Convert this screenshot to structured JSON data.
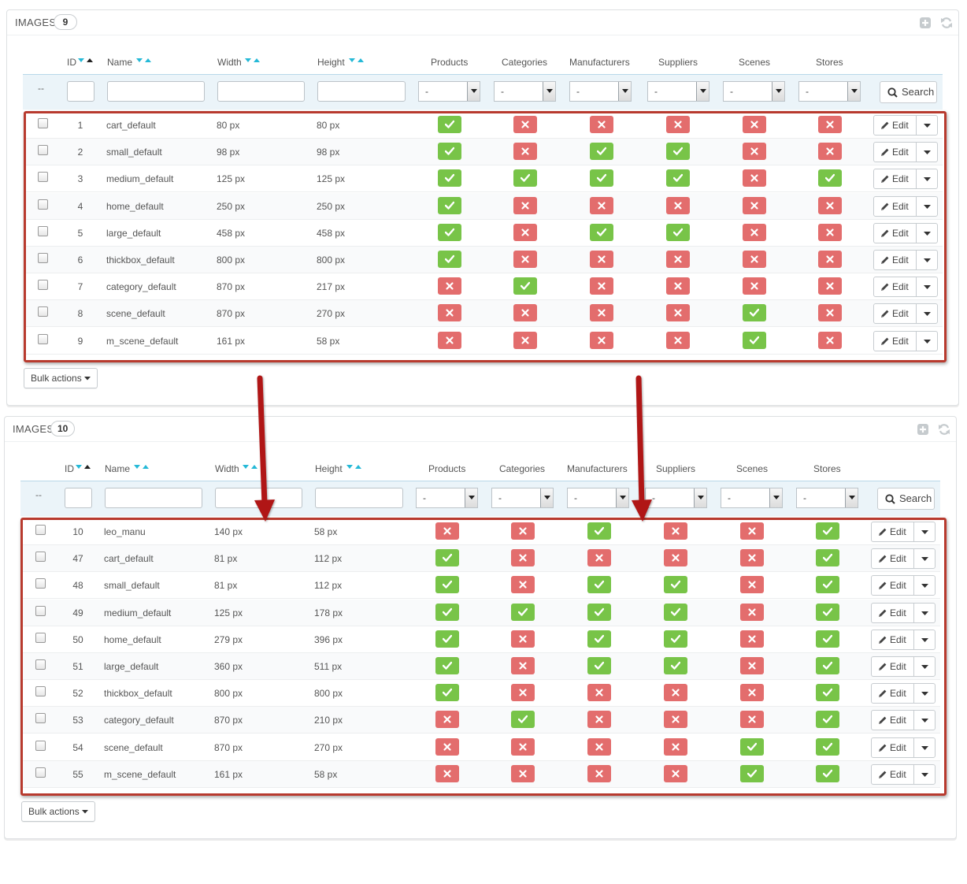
{
  "panels": [
    {
      "title": "IMAGES",
      "count": "9",
      "headers": {
        "id": "ID",
        "name": "Name",
        "width": "Width",
        "height": "Height",
        "products": "Products",
        "categories": "Categories",
        "manufacturers": "Manufacturers",
        "suppliers": "Suppliers",
        "scenes": "Scenes",
        "stores": "Stores"
      },
      "filter": {
        "dash": "--",
        "select_value": "-",
        "search_label": "Search"
      },
      "rows": [
        {
          "id": "1",
          "name": "cart_default",
          "width": "80 px",
          "height": "80 px",
          "flags": [
            true,
            false,
            false,
            false,
            false,
            false
          ]
        },
        {
          "id": "2",
          "name": "small_default",
          "width": "98 px",
          "height": "98 px",
          "flags": [
            true,
            false,
            true,
            true,
            false,
            false
          ]
        },
        {
          "id": "3",
          "name": "medium_default",
          "width": "125 px",
          "height": "125 px",
          "flags": [
            true,
            true,
            true,
            true,
            false,
            true
          ]
        },
        {
          "id": "4",
          "name": "home_default",
          "width": "250 px",
          "height": "250 px",
          "flags": [
            true,
            false,
            false,
            false,
            false,
            false
          ]
        },
        {
          "id": "5",
          "name": "large_default",
          "width": "458 px",
          "height": "458 px",
          "flags": [
            true,
            false,
            true,
            true,
            false,
            false
          ]
        },
        {
          "id": "6",
          "name": "thickbox_default",
          "width": "800 px",
          "height": "800 px",
          "flags": [
            true,
            false,
            false,
            false,
            false,
            false
          ]
        },
        {
          "id": "7",
          "name": "category_default",
          "width": "870 px",
          "height": "217 px",
          "flags": [
            false,
            true,
            false,
            false,
            false,
            false
          ]
        },
        {
          "id": "8",
          "name": "scene_default",
          "width": "870 px",
          "height": "270 px",
          "flags": [
            false,
            false,
            false,
            false,
            true,
            false
          ]
        },
        {
          "id": "9",
          "name": "m_scene_default",
          "width": "161 px",
          "height": "58 px",
          "flags": [
            false,
            false,
            false,
            false,
            true,
            false
          ]
        }
      ],
      "edit_label": "Edit",
      "bulk_label": "Bulk actions"
    },
    {
      "title": "IMAGES",
      "count": "10",
      "headers": {
        "id": "ID",
        "name": "Name",
        "width": "Width",
        "height": "Height",
        "products": "Products",
        "categories": "Categories",
        "manufacturers": "Manufacturers",
        "suppliers": "Suppliers",
        "scenes": "Scenes",
        "stores": "Stores"
      },
      "filter": {
        "dash": "--",
        "select_value": "-",
        "search_label": "Search"
      },
      "rows": [
        {
          "id": "10",
          "name": "leo_manu",
          "width": "140 px",
          "height": "58 px",
          "flags": [
            false,
            false,
            true,
            false,
            false,
            true
          ]
        },
        {
          "id": "47",
          "name": "cart_default",
          "width": "81 px",
          "height": "112 px",
          "flags": [
            true,
            false,
            false,
            false,
            false,
            true
          ]
        },
        {
          "id": "48",
          "name": "small_default",
          "width": "81 px",
          "height": "112 px",
          "flags": [
            true,
            false,
            true,
            true,
            false,
            true
          ]
        },
        {
          "id": "49",
          "name": "medium_default",
          "width": "125 px",
          "height": "178 px",
          "flags": [
            true,
            true,
            true,
            true,
            false,
            true
          ]
        },
        {
          "id": "50",
          "name": "home_default",
          "width": "279 px",
          "height": "396 px",
          "flags": [
            true,
            false,
            true,
            true,
            false,
            true
          ]
        },
        {
          "id": "51",
          "name": "large_default",
          "width": "360 px",
          "height": "511 px",
          "flags": [
            true,
            false,
            true,
            true,
            false,
            true
          ]
        },
        {
          "id": "52",
          "name": "thickbox_default",
          "width": "800 px",
          "height": "800 px",
          "flags": [
            true,
            false,
            false,
            false,
            false,
            true
          ]
        },
        {
          "id": "53",
          "name": "category_default",
          "width": "870 px",
          "height": "210 px",
          "flags": [
            false,
            true,
            false,
            false,
            false,
            true
          ]
        },
        {
          "id": "54",
          "name": "scene_default",
          "width": "870 px",
          "height": "270 px",
          "flags": [
            false,
            false,
            false,
            false,
            true,
            true
          ]
        },
        {
          "id": "55",
          "name": "m_scene_default",
          "width": "161 px",
          "height": "58 px",
          "flags": [
            false,
            false,
            false,
            false,
            true,
            true
          ]
        }
      ],
      "edit_label": "Edit",
      "bulk_label": "Bulk actions"
    }
  ],
  "colors": {
    "yes": "#78c448",
    "no": "#e36d6d",
    "highlight": "#b83a2e",
    "annotation_arrow": "#b01717",
    "sort_arrow": "#25b9d7"
  }
}
